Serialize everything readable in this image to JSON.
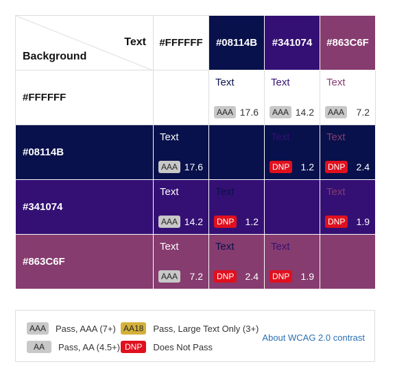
{
  "corner": {
    "text_label": "Text",
    "background_label": "Background"
  },
  "colors": [
    {
      "hex": "#FFFFFF",
      "fg": "#111111"
    },
    {
      "hex": "#08114B",
      "fg": "#ffffff"
    },
    {
      "hex": "#341074",
      "fg": "#ffffff"
    },
    {
      "hex": "#863C6F",
      "fg": "#ffffff"
    }
  ],
  "sample_text": "Text",
  "matrix": [
    [
      null,
      {
        "rating": "AAA",
        "ratio": "17.6"
      },
      {
        "rating": "AAA",
        "ratio": "14.2"
      },
      {
        "rating": "AAA",
        "ratio": "7.2"
      }
    ],
    [
      {
        "rating": "AAA",
        "ratio": "17.6"
      },
      null,
      {
        "rating": "DNP",
        "ratio": "1.2"
      },
      {
        "rating": "DNP",
        "ratio": "2.4"
      }
    ],
    [
      {
        "rating": "AAA",
        "ratio": "14.2"
      },
      {
        "rating": "DNP",
        "ratio": "1.2"
      },
      null,
      {
        "rating": "DNP",
        "ratio": "1.9"
      }
    ],
    [
      {
        "rating": "AAA",
        "ratio": "7.2"
      },
      {
        "rating": "DNP",
        "ratio": "2.4"
      },
      {
        "rating": "DNP",
        "ratio": "1.9"
      },
      null
    ]
  ],
  "legend": {
    "aaa_badge": "AAA",
    "aaa_desc": "Pass, AAA (7+)",
    "aa18_badge": "AA18",
    "aa18_desc": "Pass, Large Text Only (3+)",
    "aa_badge": "AA",
    "aa_desc": "Pass, AA (4.5+)",
    "dnp_badge": "DNP",
    "dnp_desc": "Does Not Pass",
    "link": "About WCAG 2.0 contrast"
  }
}
